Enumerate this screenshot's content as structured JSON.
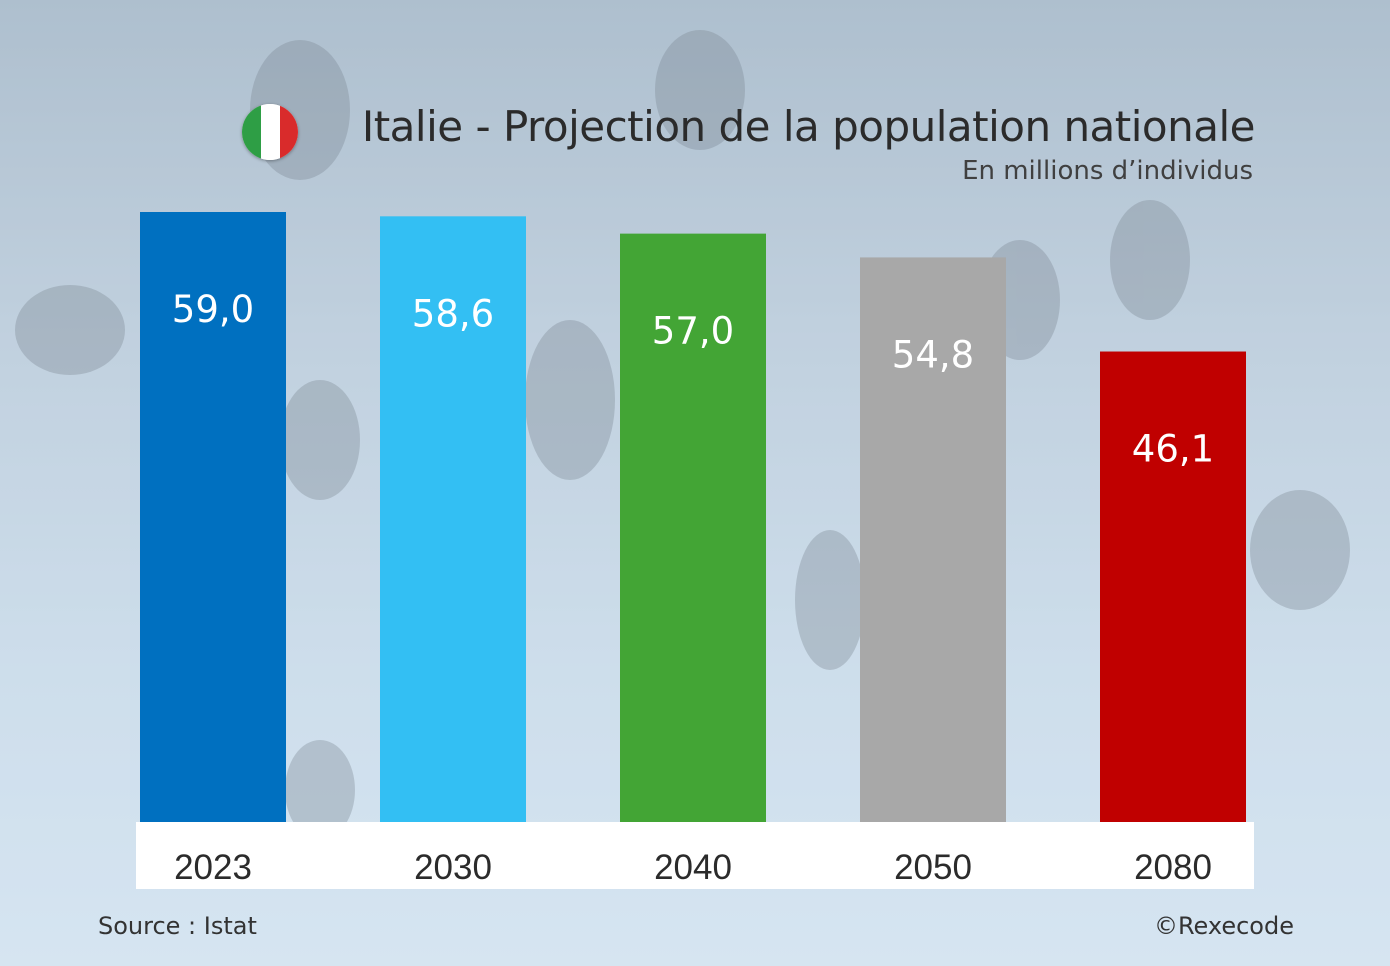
{
  "chart_data": {
    "type": "bar",
    "title": "Italie - Projection de la population nationale",
    "subtitle": "En millions d’individus",
    "categories": [
      "2023",
      "2030",
      "2040",
      "2050",
      "2080"
    ],
    "values": [
      59.0,
      58.6,
      57.0,
      54.8,
      46.1
    ],
    "value_labels": [
      "59,0",
      "58,6",
      "57,0",
      "54,8",
      "46,1"
    ],
    "bar_colors": [
      "#0070c0",
      "#33bff3",
      "#43a535",
      "#a8a8a8",
      "#c00000"
    ],
    "value_label_color": "#ffffff",
    "ylim": [
      0,
      59.6
    ],
    "grid": false,
    "legend": "none"
  },
  "flag": {
    "colors": [
      "#2e9e45",
      "#ffffff",
      "#d92b2b"
    ],
    "icon": "italy-flag-icon"
  },
  "footer": {
    "source": "Source : Istat",
    "copyright": "©Rexecode"
  }
}
